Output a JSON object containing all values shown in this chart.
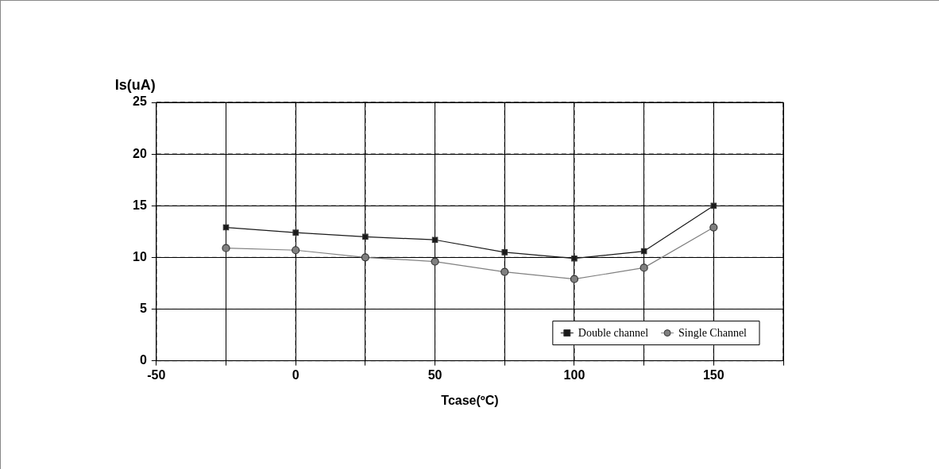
{
  "chart_data": {
    "type": "line",
    "xlabel": "Tcase(ºC)",
    "ylabel": "Is(uA)",
    "x": [
      -25,
      0,
      25,
      50,
      75,
      100,
      125,
      150
    ],
    "series": [
      {
        "name": "Double channel",
        "color": "#1a1a1a",
        "marker": "square",
        "values": [
          12.9,
          12.4,
          12.0,
          11.7,
          10.5,
          9.9,
          10.6,
          15.0
        ]
      },
      {
        "name": "Single Channel",
        "color": "#808080",
        "marker": "circle",
        "values": [
          10.9,
          10.7,
          10.0,
          9.6,
          8.6,
          7.9,
          9.0,
          12.9
        ]
      }
    ],
    "xlim": [
      -50,
      175
    ],
    "xticks": [
      -50,
      {
        "value": -25,
        "label": null
      },
      0,
      {
        "value": 25,
        "label": null
      },
      50,
      {
        "value": 75,
        "label": null
      },
      100,
      {
        "value": 125,
        "label": null
      },
      150,
      {
        "value": 175,
        "label": null
      }
    ],
    "ylim": [
      0,
      25
    ],
    "yticks": [
      0,
      5,
      10,
      15,
      20,
      25
    ],
    "grid": true,
    "legend": "bottom right",
    "line_style": "solid"
  }
}
